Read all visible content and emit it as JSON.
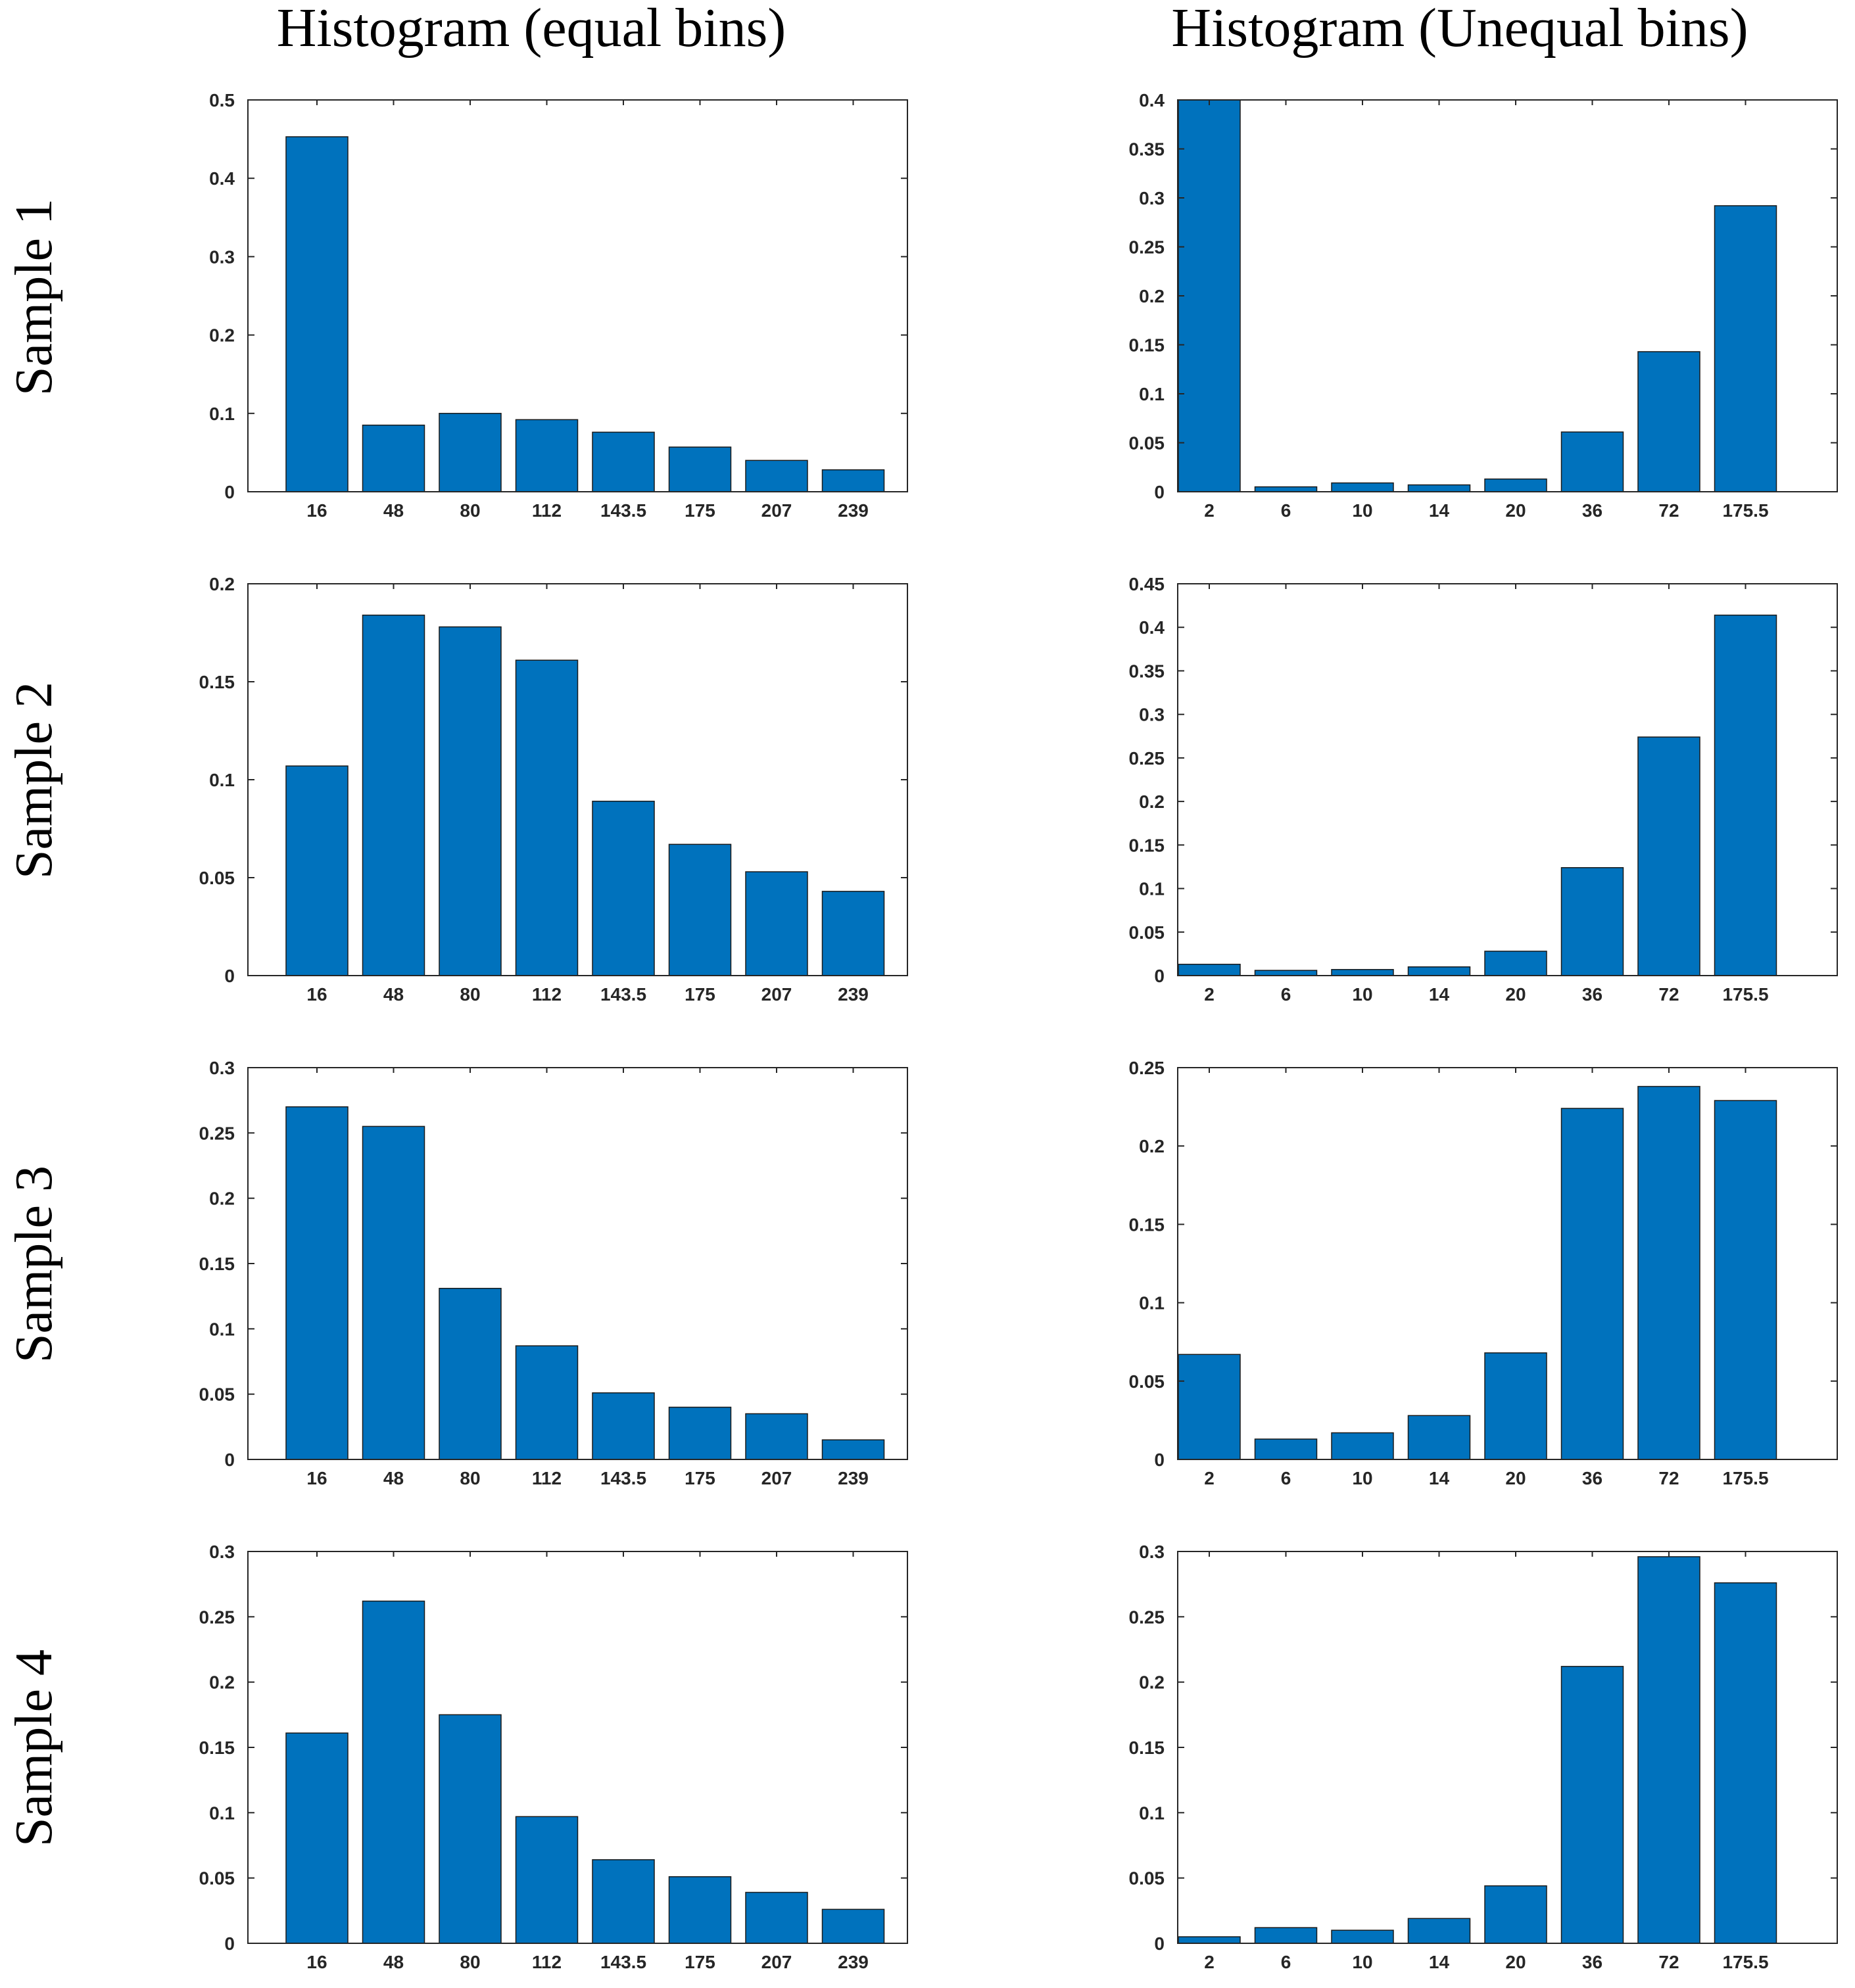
{
  "column_titles": [
    "Histogram (equal bins)",
    "Histogram (Unequal bins)"
  ],
  "row_labels": [
    "Sample 1",
    "Sample 2",
    "Sample 3",
    "Sample 4"
  ],
  "colors": {
    "bar": "#0072BD",
    "bar_edge": "#1a1a1a",
    "axis": "#262626"
  },
  "chart_data": [
    {
      "type": "bar",
      "title": "Histogram (equal bins)",
      "sample": "Sample 1",
      "categories": [
        "16",
        "48",
        "80",
        "112",
        "143.5",
        "175",
        "207",
        "239"
      ],
      "values": [
        0.453,
        0.085,
        0.1,
        0.092,
        0.076,
        0.057,
        0.04,
        0.028
      ],
      "ylim": [
        0,
        0.5
      ],
      "yticks": [
        0,
        0.1,
        0.2,
        0.3,
        0.4,
        0.5
      ],
      "ytick_labels": [
        "0",
        "0.1",
        "0.2",
        "0.3",
        "0.4",
        "0.5"
      ]
    },
    {
      "type": "bar",
      "title": "Histogram (Unequal bins)",
      "sample": "Sample 1",
      "categories": [
        "2",
        "6",
        "10",
        "14",
        "20",
        "36",
        "72",
        "175.5"
      ],
      "values": [
        0.4,
        0.005,
        0.009,
        0.007,
        0.013,
        0.061,
        0.143,
        0.292
      ],
      "ylim": [
        0,
        0.4
      ],
      "yticks": [
        0,
        0.05,
        0.1,
        0.15,
        0.2,
        0.25,
        0.3,
        0.35,
        0.4
      ],
      "ytick_labels": [
        "0",
        "0.05",
        "0.1",
        "0.15",
        "0.2",
        "0.25",
        "0.3",
        "0.35",
        "0.4"
      ]
    },
    {
      "type": "bar",
      "title": "Histogram (equal bins)",
      "sample": "Sample 2",
      "categories": [
        "16",
        "48",
        "80",
        "112",
        "143.5",
        "175",
        "207",
        "239"
      ],
      "values": [
        0.107,
        0.184,
        0.178,
        0.161,
        0.089,
        0.067,
        0.053,
        0.043
      ],
      "ylim": [
        0,
        0.2
      ],
      "yticks": [
        0,
        0.05,
        0.1,
        0.15,
        0.2
      ],
      "ytick_labels": [
        "0",
        "0.05",
        "0.1",
        "0.15",
        "0.2"
      ]
    },
    {
      "type": "bar",
      "title": "Histogram (Unequal bins)",
      "sample": "Sample 2",
      "categories": [
        "2",
        "6",
        "10",
        "14",
        "20",
        "36",
        "72",
        "175.5"
      ],
      "values": [
        0.013,
        0.006,
        0.007,
        0.01,
        0.028,
        0.124,
        0.274,
        0.414
      ],
      "ylim": [
        0,
        0.45
      ],
      "yticks": [
        0,
        0.05,
        0.1,
        0.15,
        0.2,
        0.25,
        0.3,
        0.35,
        0.4,
        0.45
      ],
      "ytick_labels": [
        "0",
        "0.05",
        "0.1",
        "0.15",
        "0.2",
        "0.25",
        "0.3",
        "0.35",
        "0.4",
        "0.45"
      ]
    },
    {
      "type": "bar",
      "title": "Histogram (equal bins)",
      "sample": "Sample 3",
      "categories": [
        "16",
        "48",
        "80",
        "112",
        "143.5",
        "175",
        "207",
        "239"
      ],
      "values": [
        0.27,
        0.255,
        0.131,
        0.087,
        0.051,
        0.04,
        0.035,
        0.015
      ],
      "ylim": [
        0,
        0.3
      ],
      "yticks": [
        0,
        0.05,
        0.1,
        0.15,
        0.2,
        0.25,
        0.3
      ],
      "ytick_labels": [
        "0",
        "0.05",
        "0.1",
        "0.15",
        "0.2",
        "0.25",
        "0.3"
      ]
    },
    {
      "type": "bar",
      "title": "Histogram (Unequal bins)",
      "sample": "Sample 3",
      "categories": [
        "2",
        "6",
        "10",
        "14",
        "20",
        "36",
        "72",
        "175.5"
      ],
      "values": [
        0.067,
        0.013,
        0.017,
        0.028,
        0.068,
        0.224,
        0.238,
        0.229
      ],
      "ylim": [
        0,
        0.25
      ],
      "yticks": [
        0,
        0.05,
        0.1,
        0.15,
        0.2,
        0.25
      ],
      "ytick_labels": [
        "0",
        "0.05",
        "0.1",
        "0.15",
        "0.2",
        "0.25"
      ]
    },
    {
      "type": "bar",
      "title": "Histogram (equal bins)",
      "sample": "Sample 4",
      "categories": [
        "16",
        "48",
        "80",
        "112",
        "143.5",
        "175",
        "207",
        "239"
      ],
      "values": [
        0.161,
        0.262,
        0.175,
        0.097,
        0.064,
        0.051,
        0.039,
        0.026
      ],
      "ylim": [
        0,
        0.3
      ],
      "yticks": [
        0,
        0.05,
        0.1,
        0.15,
        0.2,
        0.25,
        0.3
      ],
      "ytick_labels": [
        "0",
        "0.05",
        "0.1",
        "0.15",
        "0.2",
        "0.25",
        "0.3"
      ]
    },
    {
      "type": "bar",
      "title": "Histogram (Unequal bins)",
      "sample": "Sample 4",
      "categories": [
        "2",
        "6",
        "10",
        "14",
        "20",
        "36",
        "72",
        "175.5"
      ],
      "values": [
        0.005,
        0.012,
        0.01,
        0.019,
        0.044,
        0.212,
        0.296,
        0.276
      ],
      "ylim": [
        0,
        0.3
      ],
      "yticks": [
        0,
        0.05,
        0.1,
        0.15,
        0.2,
        0.25,
        0.3
      ],
      "ytick_labels": [
        "0",
        "0.05",
        "0.1",
        "0.15",
        "0.2",
        "0.25",
        "0.3"
      ]
    }
  ]
}
